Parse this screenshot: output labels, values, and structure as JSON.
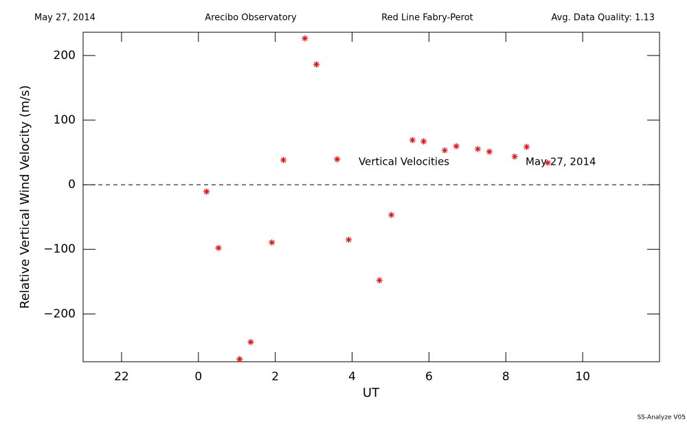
{
  "chart_data": {
    "type": "scatter",
    "header": [
      "May 27, 2014",
      "Arecibo Observatory",
      "Red Line Fabry-Perot",
      "Avg. Data Quality: 1.13"
    ],
    "annotations": [
      "Vertical Velocities",
      "May 27, 2014"
    ],
    "xlabel": "UT",
    "ylabel": "Relative Vertical Wind Velocity (m/s)",
    "footer": "SS-Analyze V05",
    "xlim": [
      -3,
      12
    ],
    "ylim": [
      -274,
      236
    ],
    "xticks": [
      {
        "value": -2,
        "label": "22"
      },
      0,
      2,
      4,
      6,
      8,
      10
    ],
    "yticks": [
      {
        "value": -200,
        "label": "−200"
      },
      {
        "value": -100,
        "label": "−100"
      },
      0,
      100,
      200
    ],
    "zero_line": 0,
    "series": [
      {
        "color": "#ff0000",
        "x": [
          0.21,
          0.52,
          1.07,
          1.36,
          1.91,
          2.21,
          2.77,
          3.07,
          3.61,
          3.91,
          4.71,
          5.02,
          5.57,
          5.86,
          6.41,
          6.71,
          7.27,
          7.57,
          8.23,
          8.54,
          9.09
        ],
        "values": [
          -10.6,
          -97.9,
          -270,
          -243.6,
          -89.4,
          38.3,
          226.6,
          186.2,
          39.4,
          -85.1,
          -147.9,
          -46.8,
          69.1,
          67.0,
          53.2,
          59.6,
          55.3,
          51.1,
          43.6,
          58.5,
          34.0
        ]
      }
    ]
  }
}
